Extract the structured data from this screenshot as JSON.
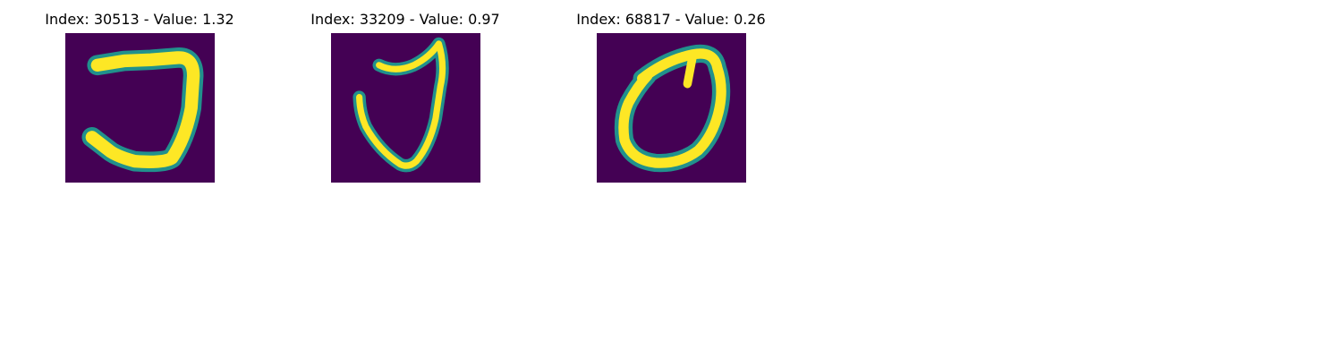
{
  "panels": [
    {
      "title": "Index: 30513 - Value: 1.32",
      "image": "digit-image-hook"
    },
    {
      "title": "Index: 33209 - Value: 0.97",
      "image": "digit-image-check"
    },
    {
      "title": "Index: 68817 - Value: 0.26",
      "image": "digit-image-loop"
    }
  ],
  "colors": {
    "background": "#440154",
    "dark_teal": "#31688e",
    "teal": "#21918c",
    "green": "#5ec962",
    "yellow": "#fde725"
  }
}
